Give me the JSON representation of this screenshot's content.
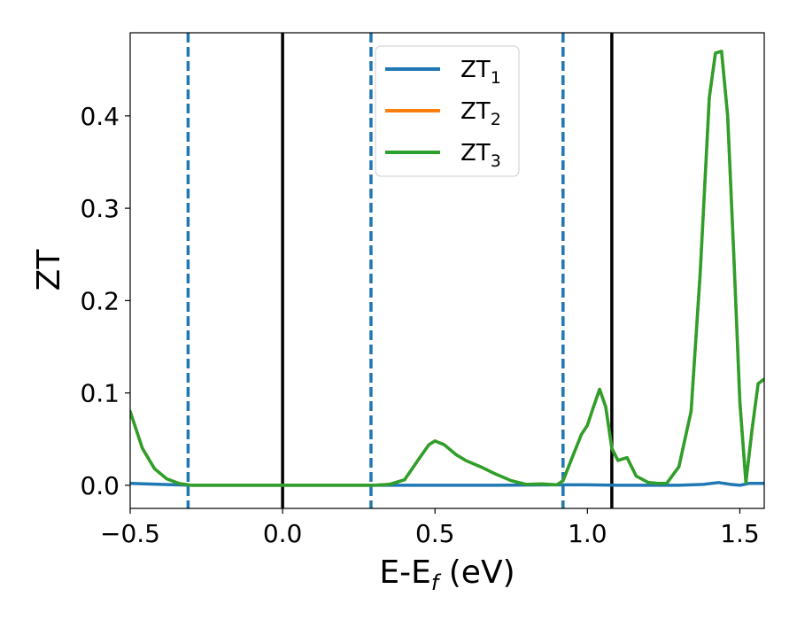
{
  "chart_data": {
    "type": "line",
    "xlabel": "E-E",
    "xlabel_sub": "f",
    "xlabel_unit": " (eV)",
    "ylabel": "ZT",
    "xlim": [
      -0.5,
      1.58
    ],
    "ylim": [
      -0.025,
      0.49
    ],
    "xticks": [
      -0.5,
      0.0,
      0.5,
      1.0,
      1.5
    ],
    "xtick_labels": [
      "−0.5",
      "0.0",
      "0.5",
      "1.0",
      "1.5"
    ],
    "yticks": [
      0.0,
      0.1,
      0.2,
      0.3,
      0.4
    ],
    "ytick_labels": [
      "0.0",
      "0.1",
      "0.2",
      "0.3",
      "0.4"
    ],
    "grid": false,
    "legend_position": "upper-center",
    "vlines": [
      {
        "x": -0.31,
        "style": "dashed",
        "color": "#1f77b4"
      },
      {
        "x": 0.0,
        "style": "solid",
        "color": "#000000"
      },
      {
        "x": 0.29,
        "style": "dashed",
        "color": "#1f77b4"
      },
      {
        "x": 0.92,
        "style": "dashed",
        "color": "#1f77b4"
      },
      {
        "x": 1.08,
        "style": "solid",
        "color": "#000000"
      }
    ],
    "series": [
      {
        "name": "ZT",
        "sub": "1",
        "color": "#1f77b4",
        "x": [
          -0.5,
          -0.4,
          -0.3,
          0.0,
          0.3,
          0.5,
          0.7,
          0.9,
          1.0,
          1.1,
          1.2,
          1.3,
          1.38,
          1.43,
          1.47,
          1.5,
          1.53,
          1.58
        ],
        "y": [
          0.002,
          0.001,
          0.0,
          0.0,
          0.0,
          0.0,
          0.0,
          0.0005,
          0.0005,
          0.0,
          0.0,
          0.0,
          0.001,
          0.003,
          0.001,
          0.0,
          0.002,
          0.002
        ]
      },
      {
        "name": "ZT",
        "sub": "2",
        "color": "#ff7f0e",
        "x": [
          -0.5,
          -0.46,
          -0.42,
          -0.38,
          -0.34,
          -0.3,
          -0.2,
          0.0,
          0.2,
          0.3,
          0.35,
          0.4,
          0.45,
          0.48,
          0.5,
          0.53,
          0.57,
          0.6,
          0.65,
          0.7,
          0.75,
          0.8,
          0.85,
          0.9,
          0.92,
          0.95,
          0.98,
          1.0,
          1.02,
          1.04,
          1.06,
          1.08,
          1.1,
          1.13,
          1.16,
          1.2,
          1.23,
          1.26,
          1.3,
          1.34,
          1.37,
          1.4,
          1.42,
          1.44,
          1.46,
          1.48,
          1.5,
          1.52,
          1.54,
          1.56,
          1.58
        ],
        "y": [
          0.08,
          0.04,
          0.018,
          0.007,
          0.002,
          0.0,
          0.0,
          0.0,
          0.0,
          0.0,
          0.001,
          0.006,
          0.03,
          0.044,
          0.048,
          0.044,
          0.033,
          0.027,
          0.02,
          0.012,
          0.005,
          0.001,
          0.0015,
          0.0005,
          0.005,
          0.03,
          0.055,
          0.065,
          0.085,
          0.104,
          0.085,
          0.04,
          0.027,
          0.03,
          0.01,
          0.003,
          0.002,
          0.002,
          0.02,
          0.08,
          0.23,
          0.42,
          0.468,
          0.47,
          0.4,
          0.25,
          0.09,
          0.003,
          0.06,
          0.11,
          0.115
        ]
      },
      {
        "name": "ZT",
        "sub": "3",
        "color": "#2ca02c",
        "x": [
          -0.5,
          -0.46,
          -0.42,
          -0.38,
          -0.34,
          -0.3,
          -0.2,
          0.0,
          0.2,
          0.3,
          0.35,
          0.4,
          0.45,
          0.48,
          0.5,
          0.53,
          0.57,
          0.6,
          0.65,
          0.7,
          0.75,
          0.8,
          0.85,
          0.9,
          0.92,
          0.95,
          0.98,
          1.0,
          1.02,
          1.04,
          1.06,
          1.08,
          1.1,
          1.13,
          1.16,
          1.2,
          1.23,
          1.26,
          1.3,
          1.34,
          1.37,
          1.4,
          1.42,
          1.44,
          1.46,
          1.48,
          1.5,
          1.52,
          1.54,
          1.56,
          1.58
        ],
        "y": [
          0.08,
          0.04,
          0.018,
          0.007,
          0.002,
          0.0,
          0.0,
          0.0,
          0.0,
          0.0,
          0.001,
          0.006,
          0.03,
          0.044,
          0.048,
          0.044,
          0.033,
          0.027,
          0.02,
          0.012,
          0.005,
          0.001,
          0.0015,
          0.0005,
          0.005,
          0.03,
          0.055,
          0.065,
          0.085,
          0.104,
          0.085,
          0.04,
          0.027,
          0.03,
          0.01,
          0.003,
          0.002,
          0.002,
          0.02,
          0.08,
          0.23,
          0.42,
          0.468,
          0.47,
          0.4,
          0.25,
          0.09,
          0.003,
          0.06,
          0.11,
          0.115
        ]
      }
    ]
  }
}
